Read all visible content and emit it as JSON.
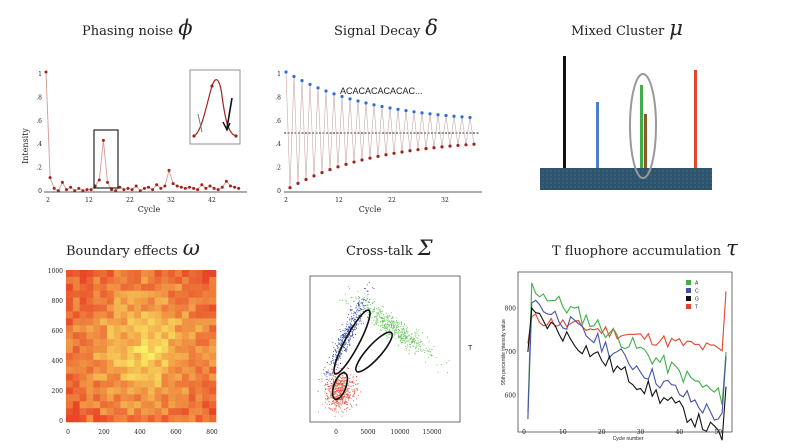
{
  "panels": {
    "phasing": {
      "title": "Phasing noise",
      "symbol": "ϕ",
      "ylabel": "Intensity",
      "xlabel": "Cycle",
      "yticks": [
        "1",
        ".8",
        ".6",
        ".4",
        ".2",
        "0"
      ],
      "xticks": [
        "2",
        "12",
        "22",
        "32",
        "42"
      ]
    },
    "decay": {
      "title": "Signal Decay",
      "symbol": "δ",
      "sequence": "ACACACACACAC...",
      "xlabel": "Cycle",
      "yticks": [
        "1",
        ".8",
        ".6",
        ".4",
        ".2",
        "0"
      ],
      "xticks": [
        "2",
        "12",
        "22",
        "32"
      ]
    },
    "mixed": {
      "title": "Mixed Cluster",
      "symbol": "μ"
    },
    "boundary": {
      "title": "Boundary effects",
      "symbol": "ω",
      "yticks": [
        "1000",
        "800",
        "600",
        "400",
        "200",
        "0"
      ],
      "xticks": [
        "0",
        "200",
        "400",
        "600",
        "800"
      ]
    },
    "crosstalk": {
      "title": "Cross-talk",
      "symbol": "Σ",
      "side_label": "T",
      "xticks": [
        "0",
        "5000",
        "10000",
        "15000"
      ]
    },
    "accum": {
      "title": "T fluophore accumulation",
      "symbol": "τ",
      "ylabel": "95th percentile intensity value",
      "xlabel": "Cycle number",
      "yticks": [
        "800",
        "700",
        "600"
      ],
      "xticks": [
        "0",
        "10",
        "20",
        "30",
        "40",
        "50"
      ],
      "legend": [
        "A",
        "C",
        "G",
        "T"
      ]
    }
  },
  "colors": {
    "A": "#3fae49",
    "C": "#4652a8",
    "G": "#111111",
    "T": "#e2442f",
    "marker": "#a3231b",
    "decay_blue": "#2f6fd0"
  }
}
